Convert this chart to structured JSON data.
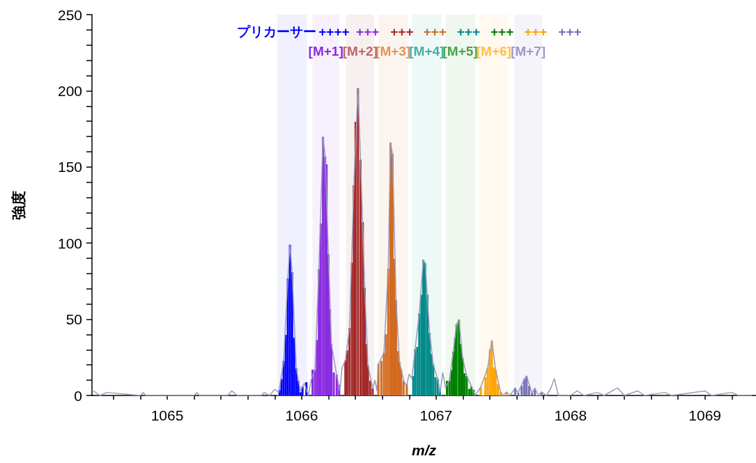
{
  "chart_data": {
    "type": "bar",
    "xlabel": "m/z",
    "ylabel": "強度",
    "xlim": [
      1064.44,
      1069.38
    ],
    "xticks": [
      {
        "value": 1064.6,
        "label": null
      },
      {
        "value": 1064.8,
        "label": null
      },
      1065,
      {
        "value": 1065.2,
        "label": null
      },
      {
        "value": 1065.4,
        "label": null
      },
      {
        "value": 1065.6,
        "label": null
      },
      {
        "value": 1065.8,
        "label": null
      },
      1066,
      {
        "value": 1066.2,
        "label": null
      },
      {
        "value": 1066.4,
        "label": null
      },
      {
        "value": 1066.6,
        "label": null
      },
      {
        "value": 1066.8,
        "label": null
      },
      1067,
      {
        "value": 1067.2,
        "label": null
      },
      {
        "value": 1067.4,
        "label": null
      },
      {
        "value": 1067.6,
        "label": null
      },
      {
        "value": 1067.8,
        "label": null
      },
      1068,
      {
        "value": 1068.2,
        "label": null
      },
      {
        "value": 1068.4,
        "label": null
      },
      {
        "value": 1068.6,
        "label": null
      },
      {
        "value": 1068.8,
        "label": null
      },
      1069,
      {
        "value": 1069.2,
        "label": null
      }
    ],
    "ylim": [
      0,
      250
    ],
    "yticks": [
      0,
      {
        "value": 10,
        "label": null
      },
      {
        "value": 20,
        "label": null
      },
      {
        "value": 30,
        "label": null
      },
      {
        "value": 40,
        "label": null
      },
      50,
      {
        "value": 60,
        "label": null
      },
      {
        "value": 70,
        "label": null
      },
      {
        "value": 80,
        "label": null
      },
      {
        "value": 90,
        "label": null
      },
      100,
      {
        "value": 110,
        "label": null
      },
      {
        "value": 120,
        "label": null
      },
      {
        "value": 130,
        "label": null
      },
      {
        "value": 140,
        "label": null
      },
      150,
      {
        "value": 160,
        "label": null
      },
      {
        "value": 170,
        "label": null
      },
      {
        "value": 180,
        "label": null
      },
      {
        "value": 190,
        "label": null
      },
      200,
      {
        "value": 210,
        "label": null
      },
      {
        "value": 220,
        "label": null
      },
      {
        "value": 230,
        "label": null
      },
      {
        "value": 240,
        "label": null
      },
      250
    ],
    "grid": false,
    "marker": "none",
    "line_style": "solid",
    "series": [
      {
        "color": "#0000ff",
        "x": [
          1065.835,
          1065.85,
          1065.866,
          1065.882,
          1065.897,
          1065.913,
          1065.929,
          1065.944,
          1065.96,
          1065.975,
          1065.991,
          1066.006,
          1066.035
        ],
        "values": [
          3.7,
          10.8,
          22.7,
          39.8,
          76.8,
          98.9,
          80.9,
          37.9,
          17.8,
          9.6,
          2.1,
          5.9,
          8.7
        ]
      },
      {
        "color": "#8a2be2",
        "x": [
          1066.081,
          1066.099,
          1066.114,
          1066.128,
          1066.142,
          1066.159,
          1066.175,
          1066.185,
          1066.199,
          1066.211,
          1066.221,
          1066.239,
          1066.261,
          1066.279
        ],
        "values": [
          16.9,
          17,
          36.4,
          82.9,
          112.9,
          169.7,
          156.8,
          151.7,
          92.8,
          56.7,
          33.7,
          15.1,
          13.6,
          7
        ]
      },
      {
        "color": "#a52a2a",
        "x": [
          1066.325,
          1066.339,
          1066.356,
          1066.374,
          1066.388,
          1066.401,
          1066.419,
          1066.438,
          1066.455,
          1066.469,
          1066.481,
          1066.493,
          1066.51,
          1066.528
        ],
        "values": [
          23,
          29.6,
          44.3,
          87.2,
          138,
          179.6,
          201.7,
          154.8,
          113.8,
          70.7,
          33.7,
          19.7,
          9.7,
          4.7
        ]
      },
      {
        "color": "#d2691e",
        "x": [
          1066.571,
          1066.593,
          1066.612,
          1066.628,
          1066.644,
          1066.661,
          1066.676,
          1066.689,
          1066.702,
          1066.716,
          1066.728,
          1066.74,
          1066.758,
          1066.782
        ],
        "values": [
          20.7,
          22.7,
          28,
          40.2,
          83.2,
          165.9,
          158.6,
          89.7,
          62.6,
          29.1,
          21.9,
          17.4,
          9.5,
          7.5
        ]
      },
      {
        "color": "#008b8b",
        "x": [
          1066.83,
          1066.844,
          1066.86,
          1066.875,
          1066.891,
          1066.905,
          1066.919,
          1066.936,
          1066.952,
          1066.965,
          1066.979,
          1066.995,
          1067.012,
          1067.029
        ],
        "values": [
          12.8,
          30.3,
          31.9,
          53.9,
          66.1,
          89,
          86.8,
          66.1,
          41,
          27.3,
          20.4,
          12,
          10.8,
          3.7
        ]
      },
      {
        "color": "#008000",
        "x": [
          1067.081,
          1067.099,
          1067.114,
          1067.128,
          1067.142,
          1067.152,
          1067.17,
          1067.185,
          1067.197,
          1067.211,
          1067.228,
          1067.246,
          1067.263,
          1067.28
        ],
        "values": [
          9.6,
          9.6,
          16.6,
          28.8,
          37.9,
          46.6,
          49.7,
          33.7,
          24.7,
          14.6,
          12.8,
          4.3,
          5.9,
          3.7
        ]
      },
      {
        "color": "#ffa500",
        "x": [
          1067.332,
          1067.367,
          1067.384,
          1067.4,
          1067.415,
          1067.429,
          1067.443,
          1067.46,
          1067.479,
          1067.524
        ],
        "values": [
          5.5,
          12,
          18.1,
          30.3,
          36,
          18.4,
          16.9,
          7.5,
          2.3,
          2.3
        ]
      },
      {
        "color": "#7570b3",
        "x": [
          1067.588,
          1067.612,
          1067.637,
          1067.656,
          1067.673,
          1067.692,
          1067.714,
          1067.735,
          1067.785
        ],
        "values": [
          5,
          1.7,
          6.4,
          10.8,
          12.8,
          6.4,
          1.7,
          4.7,
          2.3
        ]
      },
      {
        "type": "line",
        "color": "#9a9ab8",
        "x": [
          1064.45,
          1064.5,
          1064.55,
          1064.8,
          1064.82,
          1064.84,
          1065.2,
          1065.22,
          1065.24,
          1065.45,
          1065.48,
          1065.52,
          1065.7,
          1065.72,
          1065.76,
          1065.8,
          1065.83,
          1065.866,
          1065.897,
          1065.913,
          1065.929,
          1065.96,
          1065.99,
          1066.02,
          1066.05,
          1066.07,
          1066.099,
          1066.128,
          1066.159,
          1066.175,
          1066.199,
          1066.221,
          1066.26,
          1066.285,
          1066.3,
          1066.325,
          1066.356,
          1066.388,
          1066.419,
          1066.438,
          1066.469,
          1066.493,
          1066.528,
          1066.545,
          1066.56,
          1066.571,
          1066.612,
          1066.644,
          1066.661,
          1066.676,
          1066.702,
          1066.728,
          1066.76,
          1066.78,
          1066.8,
          1066.82,
          1066.844,
          1066.875,
          1066.905,
          1066.919,
          1066.952,
          1066.979,
          1067.012,
          1067.03,
          1067.05,
          1067.07,
          1067.099,
          1067.128,
          1067.152,
          1067.17,
          1067.197,
          1067.228,
          1067.263,
          1067.29,
          1067.332,
          1067.384,
          1067.415,
          1067.443,
          1067.479,
          1067.5,
          1067.524,
          1067.55,
          1067.588,
          1067.61,
          1067.656,
          1067.673,
          1067.714,
          1067.735,
          1067.76,
          1067.785,
          1067.82,
          1067.85,
          1067.88,
          1067.91,
          1068,
          1068.05,
          1068.1,
          1068.2,
          1068.25,
          1068.35,
          1068.4,
          1068.5,
          1068.55,
          1068.7,
          1068.75,
          1069,
          1069.05,
          1069.2,
          1069.25,
          1069.35
        ],
        "values": [
          3,
          0,
          2,
          0,
          2,
          0,
          0,
          2,
          0,
          0,
          3,
          0,
          0,
          2,
          0,
          4,
          2,
          22.7,
          76.8,
          98.9,
          80.9,
          17.8,
          3,
          8,
          0,
          10,
          17,
          82.9,
          169.7,
          156.8,
          92.8,
          33.7,
          13.6,
          3,
          18,
          23,
          44.3,
          138,
          201.7,
          154.8,
          70.7,
          19.7,
          4.7,
          10,
          3,
          20.7,
          28,
          83.2,
          165.9,
          158.6,
          62.6,
          21.9,
          9.5,
          6,
          14,
          11,
          30.3,
          53.9,
          89,
          86.8,
          41,
          20.4,
          10.8,
          2,
          15,
          5,
          10,
          28.8,
          46.6,
          49.7,
          24.7,
          12.8,
          5.9,
          0,
          5.5,
          18.1,
          36,
          16.9,
          2.3,
          0,
          2.3,
          0,
          5,
          1.7,
          10.8,
          12.8,
          1.7,
          4.7,
          0,
          2.3,
          0,
          4,
          11,
          0,
          0,
          3,
          0,
          2,
          0,
          5,
          0,
          3,
          0,
          2,
          0,
          3,
          0,
          2,
          0,
          0
        ]
      }
    ],
    "bands": [
      {
        "axis": "x",
        "from": 1065.82,
        "to": 1066.04,
        "color": "#f0f0fe"
      },
      {
        "axis": "x",
        "from": 1066.08,
        "to": 1066.28,
        "color": "#f7f1fd"
      },
      {
        "axis": "x",
        "from": 1066.33,
        "to": 1066.54,
        "color": "#f7f0f0"
      },
      {
        "axis": "x",
        "from": 1066.57,
        "to": 1066.79,
        "color": "#fcf5ef"
      },
      {
        "axis": "x",
        "from": 1066.82,
        "to": 1067.04,
        "color": "#eef8f6"
      },
      {
        "axis": "x",
        "from": 1067.07,
        "to": 1067.29,
        "color": "#eff7ee"
      },
      {
        "axis": "x",
        "from": 1067.32,
        "to": 1067.54,
        "color": "#fff9ef"
      },
      {
        "axis": "x",
        "from": 1067.58,
        "to": 1067.79,
        "color": "#f5f4fa"
      }
    ],
    "annotations": [
      "プリカーサー",
      "[M+1]",
      "[M+2]",
      "[M+3]",
      "[M+4]",
      "[M+5]",
      "[M+6]",
      "[M+7]",
      "++++",
      "+++",
      "+++",
      "+++",
      "+++",
      "+++",
      "+++",
      "+++"
    ]
  }
}
